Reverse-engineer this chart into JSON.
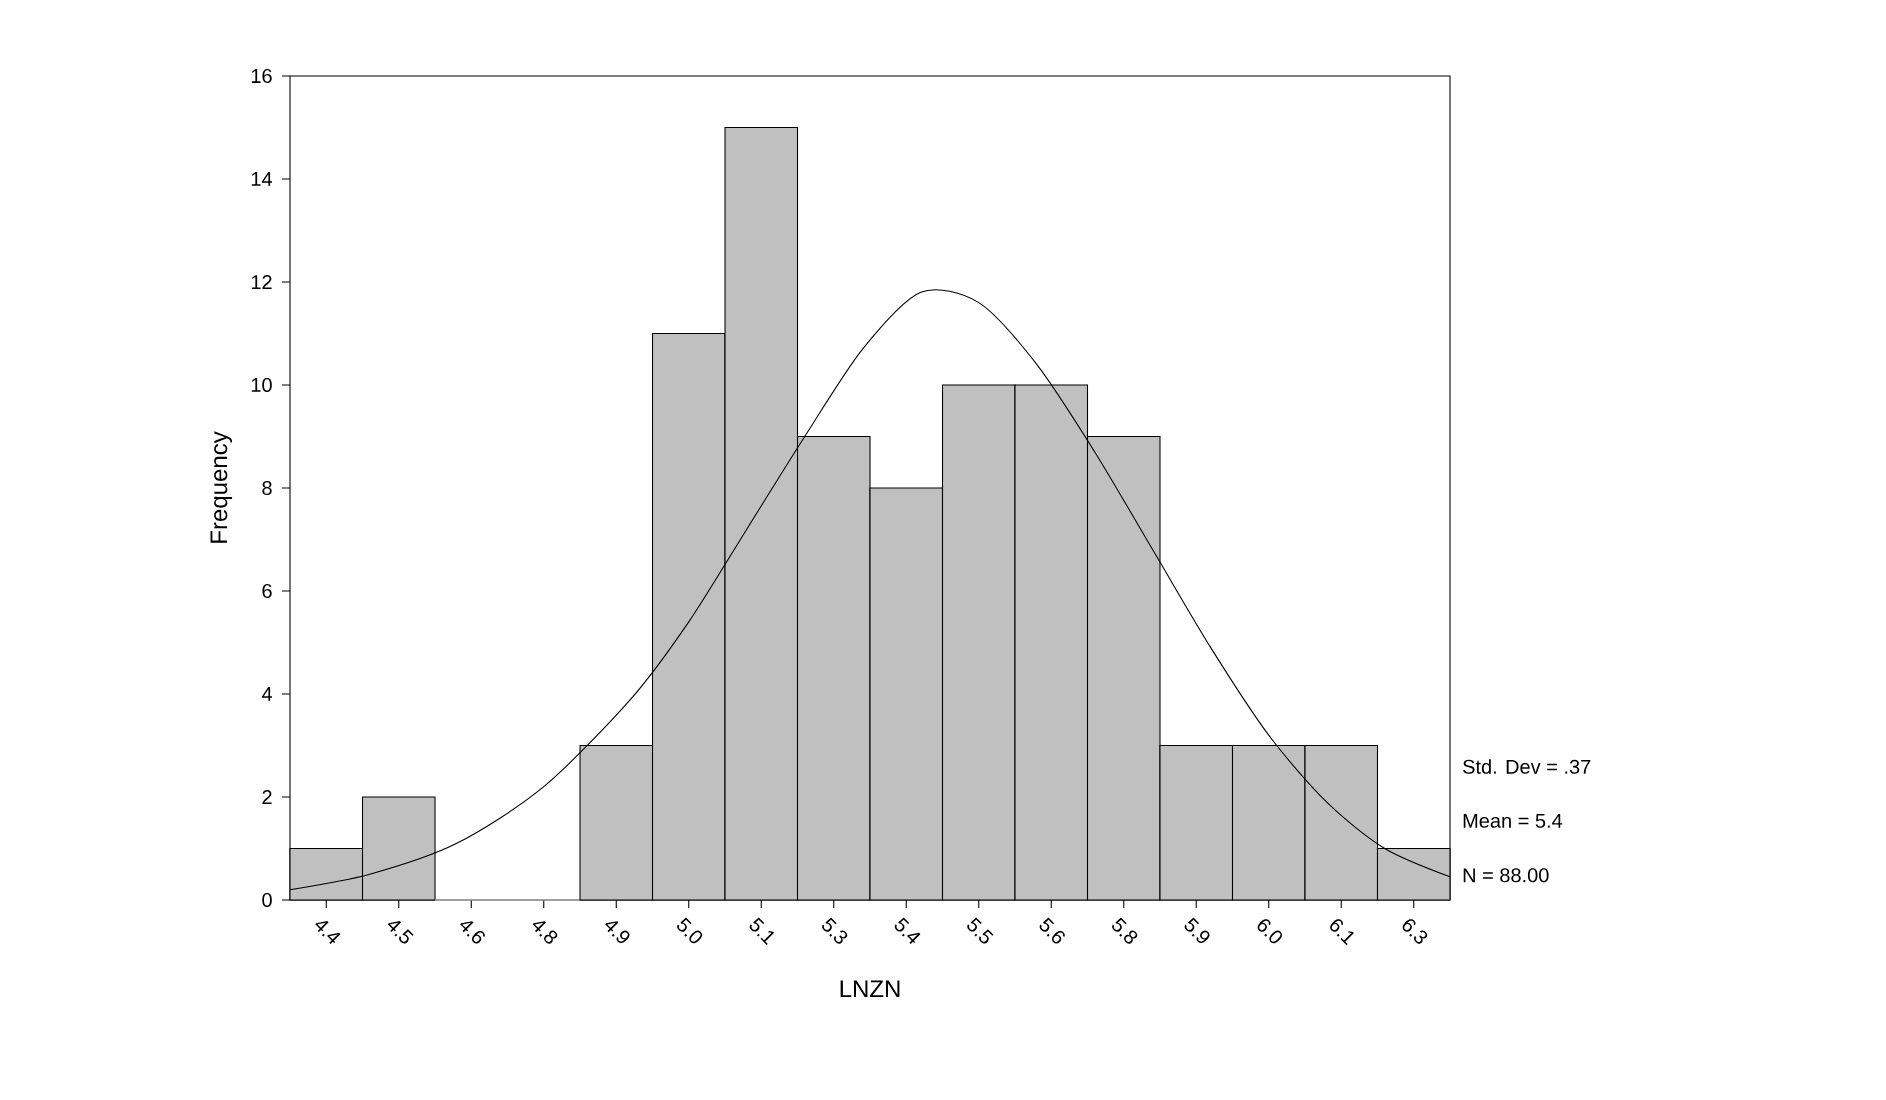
{
  "chart_data": {
    "type": "histogram",
    "xlabel": "LNZN",
    "ylabel": "Frequency",
    "bins": [
      4.3125,
      4.4375,
      4.5625,
      4.6875,
      4.8125,
      4.9375,
      5.0625,
      5.1875,
      5.3125,
      5.4375,
      5.5625,
      5.6875,
      5.8125,
      5.9375,
      6.0625,
      6.1875,
      6.3125
    ],
    "series": [
      {
        "type": "histogram",
        "color": "#c0c0c0",
        "values": [
          1,
          2,
          0,
          0,
          3,
          11,
          15,
          9,
          8,
          10,
          10,
          9,
          3,
          3,
          3,
          1
        ]
      },
      {
        "type": "line",
        "color": "#000000",
        "x": [
          4.3125,
          4.45,
          4.6,
          4.75,
          4.9,
          5.0,
          5.1,
          5.2,
          5.3,
          5.4,
          5.5,
          5.6,
          5.7,
          5.8,
          5.9,
          6.0,
          6.1,
          6.2,
          6.3125
        ],
        "values": [
          0.2,
          0.5,
          1.1,
          2.2,
          3.9,
          5.4,
          7.2,
          9.0,
          10.7,
          11.8,
          11.6,
          10.4,
          8.7,
          6.8,
          4.9,
          3.2,
          1.9,
          1.0,
          0.45
        ]
      }
    ],
    "xlim": [
      4.3125,
      6.3125
    ],
    "ylim": [
      0,
      16
    ],
    "xticks": [
      {
        "value": 4.375,
        "label": "4.4"
      },
      {
        "value": 4.5,
        "label": "4.5"
      },
      {
        "value": 4.625,
        "label": "4.6"
      },
      {
        "value": 4.75,
        "label": "4.8"
      },
      {
        "value": 4.875,
        "label": "4.9"
      },
      {
        "value": 5.0,
        "label": "5.0"
      },
      {
        "value": 5.125,
        "label": "5.1"
      },
      {
        "value": 5.25,
        "label": "5.3"
      },
      {
        "value": 5.375,
        "label": "5.4"
      },
      {
        "value": 5.5,
        "label": "5.5"
      },
      {
        "value": 5.625,
        "label": "5.6"
      },
      {
        "value": 5.75,
        "label": "5.8"
      },
      {
        "value": 5.875,
        "label": "5.9"
      },
      {
        "value": 6.0,
        "label": "6.0"
      },
      {
        "value": 6.125,
        "label": "6.1"
      },
      {
        "value": 6.25,
        "label": "6.3"
      }
    ],
    "yticks": [
      0,
      2,
      4,
      6,
      8,
      10,
      12,
      14,
      16
    ],
    "annotations": [
      "Std. Dev = .37",
      "Mean = 5.4",
      "N = 88.00"
    ]
  }
}
